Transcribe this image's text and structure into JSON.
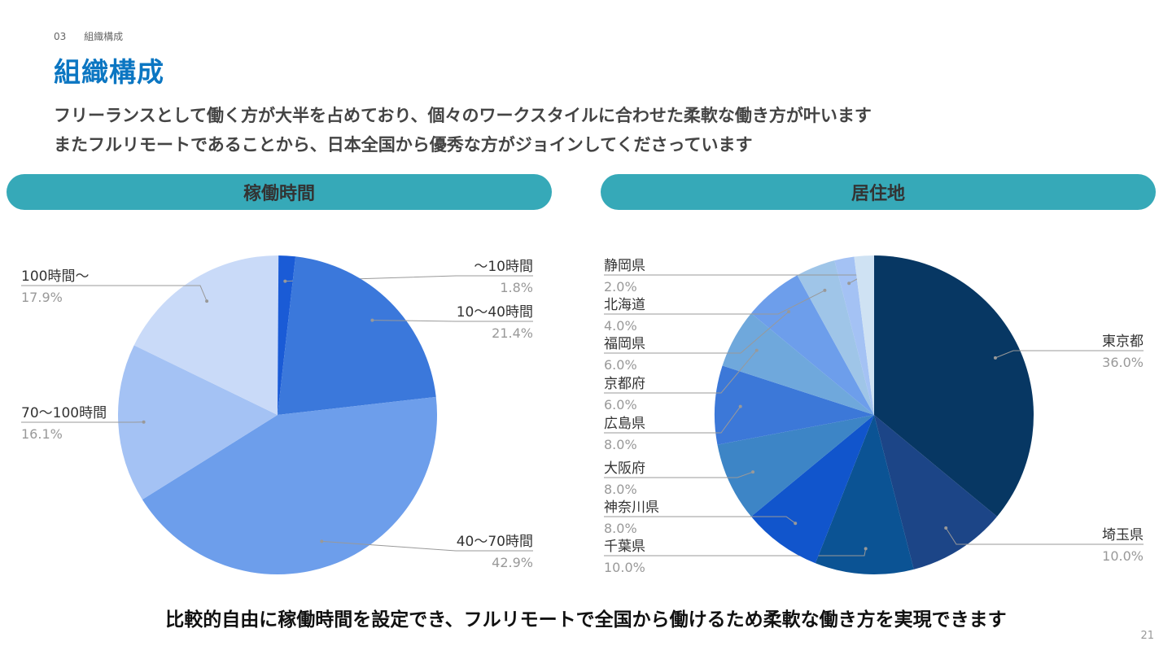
{
  "header": {
    "section_number": "03",
    "section_name": "組織構成",
    "title": "組織構成",
    "lead_line1": "フリーランスとして働く方が大半を占めており、個々のワークスタイルに合わせた柔軟な働き方が叶います",
    "lead_line2": "またフルリモートであることから、日本全国から優秀な方がジョインしてくださっています"
  },
  "pills": {
    "left": "稼働時間",
    "right": "居住地"
  },
  "footer": {
    "conclusion": "比較的自由に稼働時間を設定でき、フルリモートで全国から働けるため柔軟な働き方を実現できます",
    "page_number": "21"
  },
  "colors": {
    "title": "#0b76c2",
    "pill": "#36a9b8"
  },
  "chart_data": [
    {
      "type": "pie",
      "title": "稼働時間",
      "categories": [
        "～10時間",
        "10～40時間",
        "40～70時間",
        "70～100時間",
        "100時間～"
      ],
      "values": [
        1.8,
        21.4,
        42.9,
        16.1,
        17.9
      ],
      "value_labels": [
        "1.8%",
        "21.4%",
        "42.9%",
        "16.1%",
        "17.9%"
      ],
      "colors": [
        "#1a5bd6",
        "#3b78db",
        "#6d9eeb",
        "#a4c2f4",
        "#c9daf8"
      ]
    },
    {
      "type": "pie",
      "title": "居住地",
      "categories": [
        "東京都",
        "埼玉県",
        "千葉県",
        "神奈川県",
        "大阪府",
        "広島県",
        "京都府",
        "福岡県",
        "北海道",
        "静岡県"
      ],
      "values": [
        36.0,
        10.0,
        10.0,
        8.0,
        8.0,
        8.0,
        6.0,
        6.0,
        4.0,
        2.0
      ],
      "value_labels": [
        "36.0%",
        "10.0%",
        "10.0%",
        "8.0%",
        "8.0%",
        "8.0%",
        "6.0%",
        "6.0%",
        "4.0%",
        "2.0%"
      ],
      "colors": [
        "#073763",
        "#1c4587",
        "#0b5394",
        "#1155cc",
        "#3d85c6",
        "#3c78d8",
        "#6fa8dc",
        "#6d9eeb",
        "#9fc5e8",
        "#a4c2f4"
      ],
      "remainder_color": "#cfe2f3"
    }
  ]
}
